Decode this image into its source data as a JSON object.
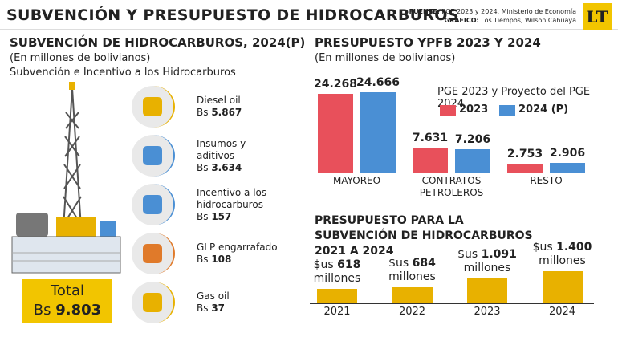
{
  "header": {
    "title": "SUBVENCIÓN Y PRESUPUESTO DE HIDROCARBUROS",
    "source_label": "FUENTE:",
    "source": "PGE 2023 y 2024, Ministerio de Economía",
    "graphic_label": "GRÁFICO:",
    "graphic": "Los Tiempos, Wilson Cahuaya",
    "logo": "LT"
  },
  "subsidy": {
    "title": "SUBVENCIÓN DE HIDROCARBUROS, 2024(P)",
    "subtitle": "(En millones de bolivianos)",
    "subtitle2": "Subvención e Incentivo a los Hidrocarburos",
    "items": [
      {
        "label": "Diesel oil",
        "unit": "Bs",
        "amount": "5.867"
      },
      {
        "label": "Insumos y aditivos",
        "unit": "Bs",
        "amount": "3.634"
      },
      {
        "label": "Incentivo a los hidrocarburos",
        "unit": "Bs",
        "amount": "157"
      },
      {
        "label": "GLP engarrafado",
        "unit": "Bs",
        "amount": "108"
      },
      {
        "label": "Gas oil",
        "unit": "Bs",
        "amount": "37"
      }
    ],
    "total": {
      "label": "Total",
      "unit": "Bs",
      "amount": "9.803"
    }
  },
  "chart_data": [
    {
      "type": "bar",
      "title": "PRESUPUESTO YPFB 2023 Y 2024",
      "subtitle": "(En millones de bolivianos)",
      "legend_title": "PGE 2023 y Proyecto del PGE 2024",
      "categories": [
        "MAYOREO",
        "CONTRATOS PETROLEROS",
        "RESTO"
      ],
      "series": [
        {
          "name": "2023",
          "color": "#e8505b",
          "values": [
            24268,
            7631,
            2753
          ],
          "value_labels": [
            "24.268",
            "7.631",
            "2.753"
          ]
        },
        {
          "name": "2024 (P)",
          "color": "#4a8fd4",
          "values": [
            24666,
            7206,
            2906
          ],
          "value_labels": [
            "24.666",
            "7.206",
            "2.906"
          ]
        }
      ]
    },
    {
      "type": "bar",
      "title": "PRESUPUESTO PARA LA SUBVENCIÓN DE HIDROCARBUROS 2021 A 2024",
      "categories": [
        "2021",
        "2022",
        "2023",
        "2024"
      ],
      "values": [
        618,
        684,
        1091,
        1400
      ],
      "value_labels": [
        "618",
        "684",
        "1.091",
        "1.400"
      ],
      "label_prefix": "$us",
      "label_suffix": "millones",
      "color": "#e8b100"
    }
  ]
}
